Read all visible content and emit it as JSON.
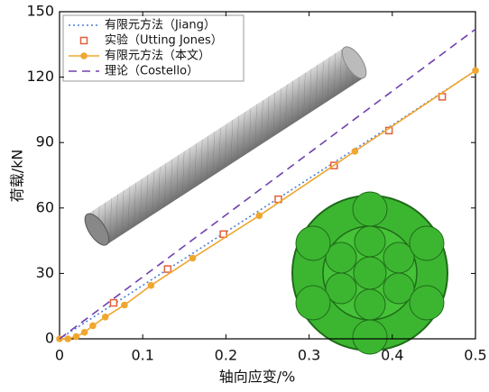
{
  "chart_data": {
    "type": "line",
    "xlabel": "轴向应变/%",
    "ylabel": "荷载/kN",
    "xlim": [
      0,
      0.5
    ],
    "ylim": [
      0,
      150
    ],
    "xticks": [
      0,
      0.1,
      0.2,
      0.3,
      0.4,
      0.5
    ],
    "yticks": [
      0,
      30,
      60,
      90,
      120,
      150
    ],
    "legend": "upper left",
    "series": [
      {
        "name": "有限元方法（Jiang）",
        "color": "#4a7fd4",
        "style": "dotted",
        "marker": "none",
        "x": [
          0,
          0.1,
          0.2,
          0.3,
          0.4,
          0.5
        ],
        "values": [
          0,
          24.5,
          49,
          73.5,
          98,
          123
        ]
      },
      {
        "name": "实验（Utting Jones）",
        "color": "#e0603a",
        "style": "none",
        "marker": "square",
        "x": [
          0.065,
          0.13,
          0.197,
          0.263,
          0.33,
          0.396,
          0.46
        ],
        "values": [
          16.5,
          32,
          48,
          64,
          79.5,
          95.5,
          111
        ]
      },
      {
        "name": "有限元方法（本文）",
        "color": "#f0a630",
        "style": "solid",
        "marker": "circle",
        "x": [
          0,
          0.01,
          0.02,
          0.03,
          0.04,
          0.055,
          0.078,
          0.11,
          0.16,
          0.24,
          0.355,
          0.5
        ],
        "values": [
          0,
          0,
          1,
          3,
          6,
          10,
          15.5,
          24.5,
          37,
          56.5,
          86,
          123
        ]
      },
      {
        "name": "理论（Costello）",
        "color": "#7040b0",
        "style": "dashed",
        "marker": "none",
        "x": [
          0,
          0.5
        ],
        "values": [
          0,
          142
        ]
      }
    ]
  }
}
